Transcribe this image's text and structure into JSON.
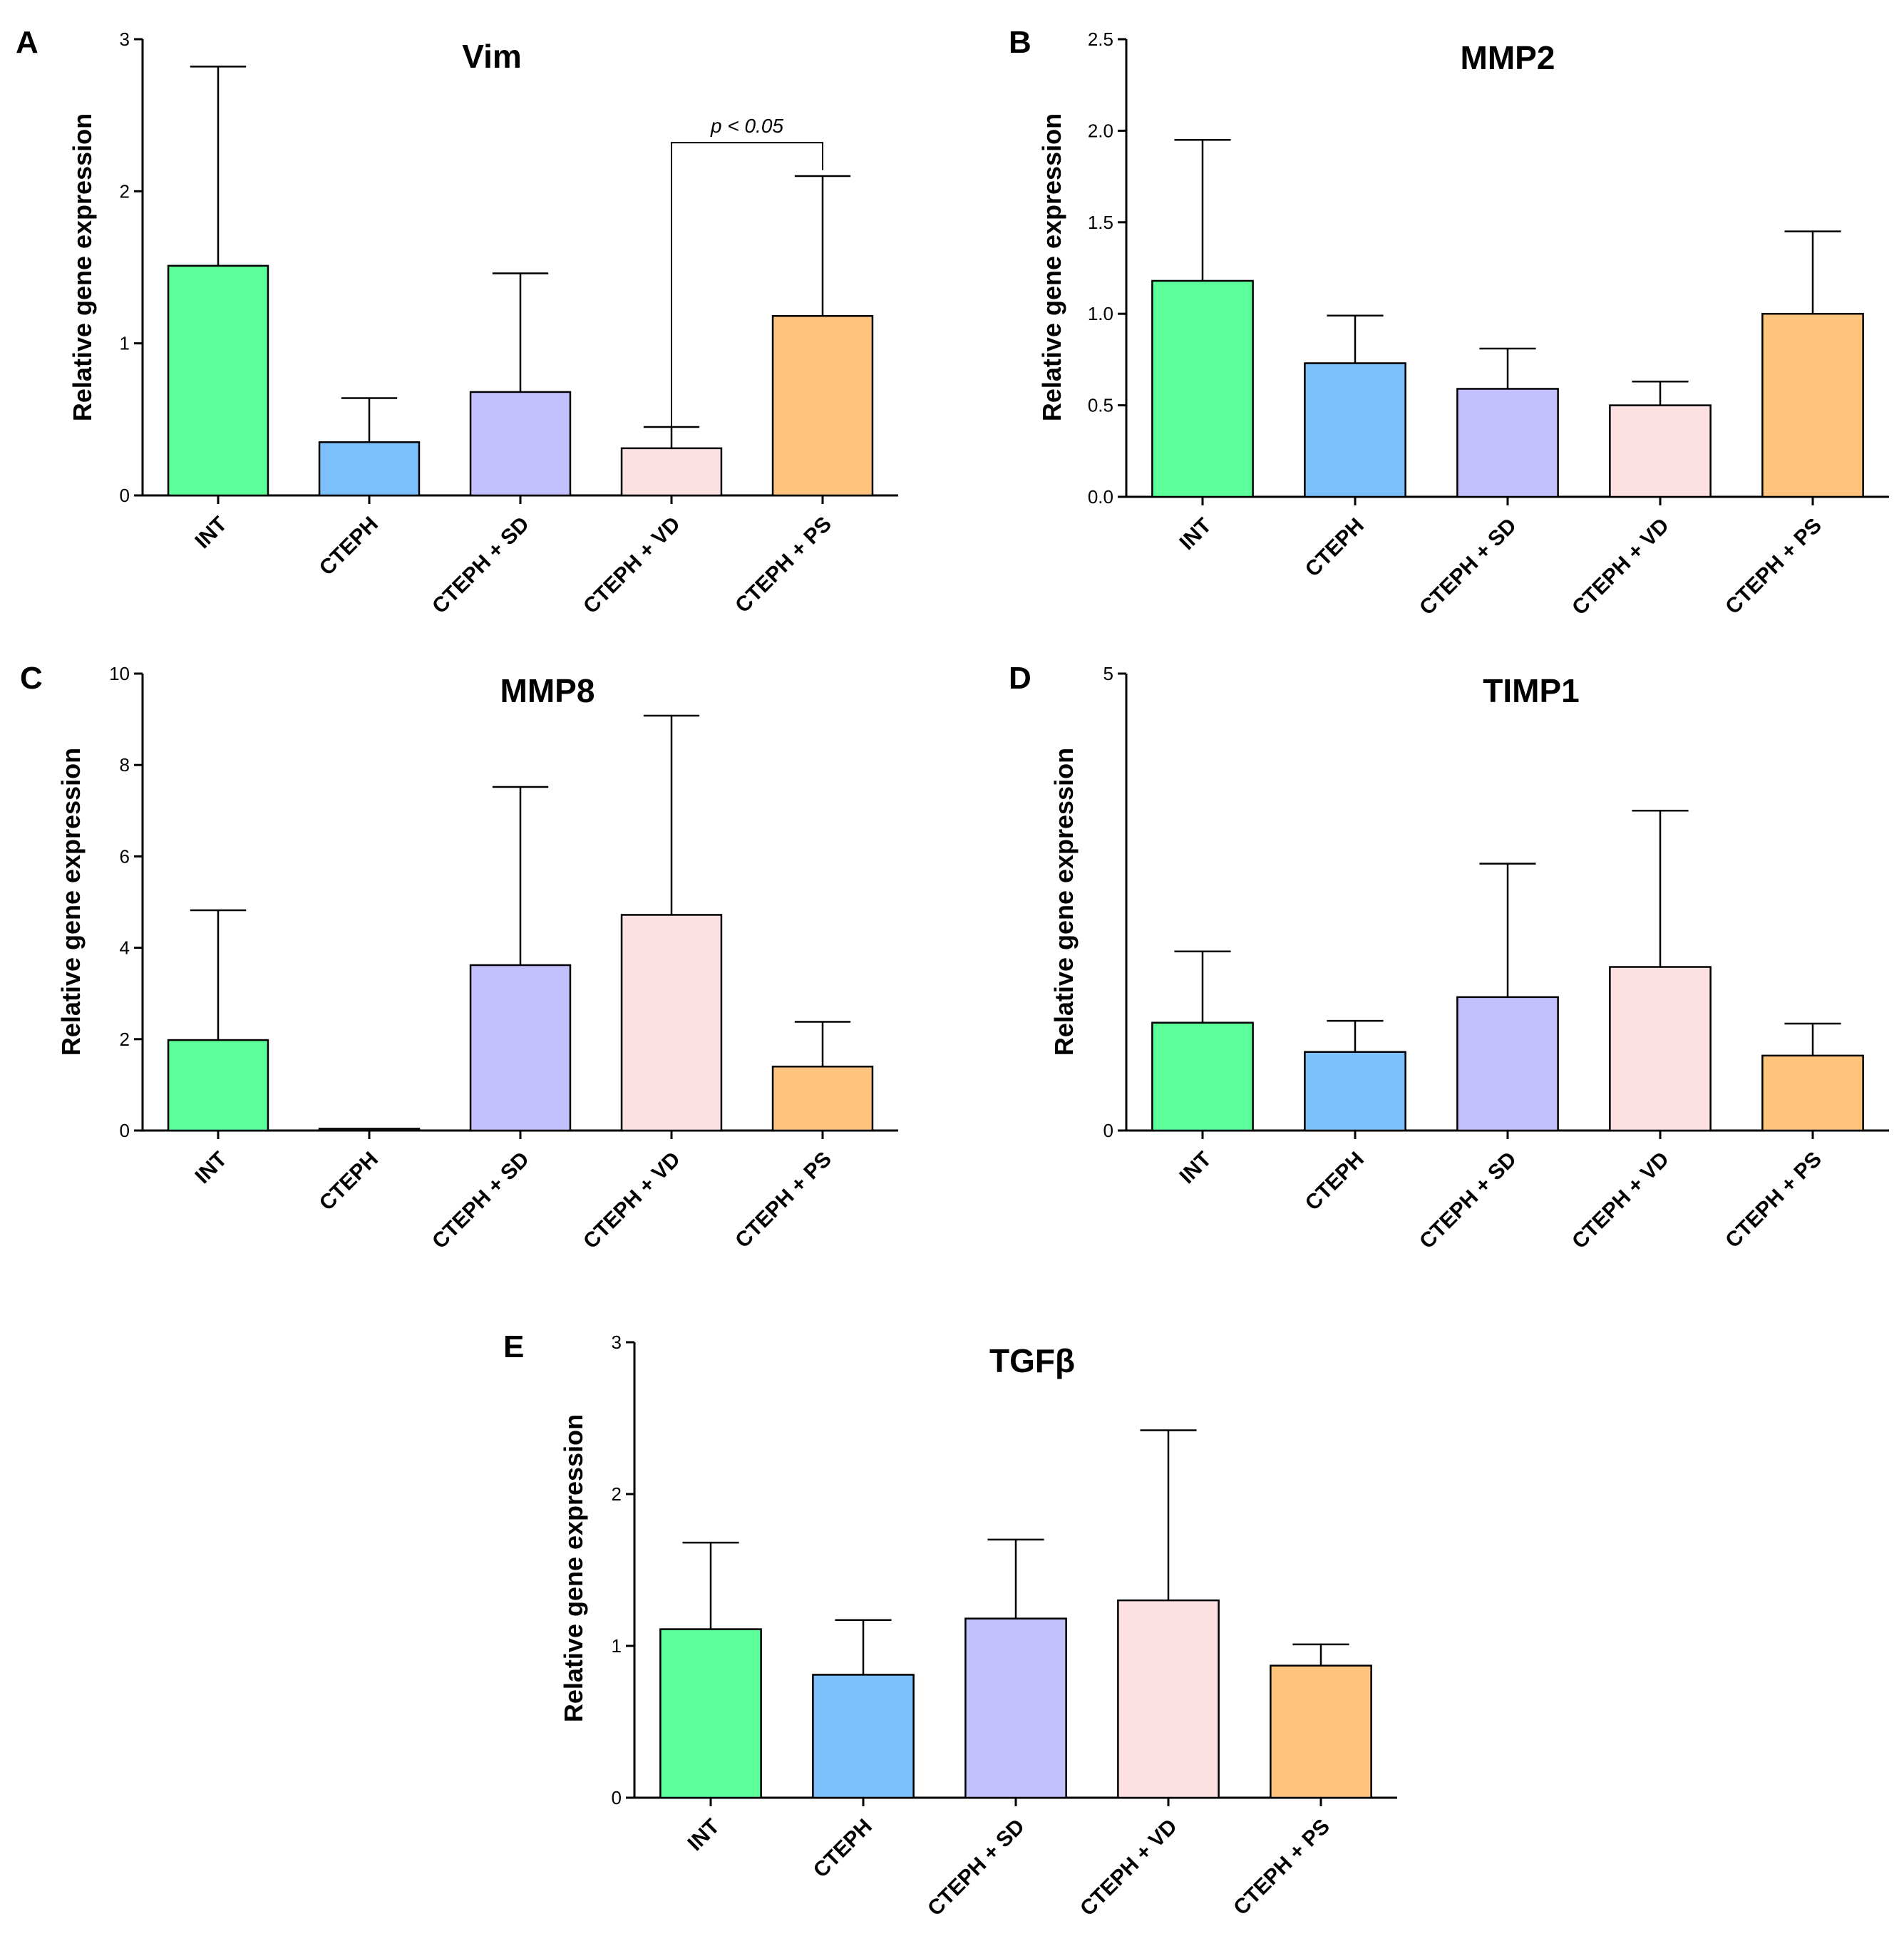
{
  "figure": {
    "categories": [
      "INT",
      "CTEPH",
      "CTEPH + SD",
      "CTEPH + VD",
      "CTEPH + PS"
    ],
    "colors": [
      "#5cff9a",
      "#7cc0fb",
      "#c2c0fd",
      "#fde0e2",
      "#fec37d"
    ]
  },
  "chart_data": [
    {
      "panel": "A",
      "type": "bar",
      "title": "Vim",
      "xlabel": "",
      "ylabel": "Relative gene expression",
      "ylim": [
        0,
        3
      ],
      "yticks": [
        0,
        1,
        2,
        3
      ],
      "tick_labels": [
        "0",
        "1",
        "2",
        "3"
      ],
      "categories": [
        "INT",
        "CTEPH",
        "CTEPH + SD",
        "CTEPH + VD",
        "CTEPH + PS"
      ],
      "values": [
        1.51,
        0.35,
        0.68,
        0.31,
        1.18
      ],
      "error_upper": [
        2.82,
        0.64,
        1.46,
        0.45,
        2.1
      ],
      "significance": {
        "from": 3,
        "to": 4,
        "label": "p < 0.05"
      }
    },
    {
      "panel": "B",
      "type": "bar",
      "title": "MMP2",
      "xlabel": "",
      "ylabel": "Relative gene expression",
      "ylim": [
        0,
        2.5
      ],
      "yticks": [
        0,
        0.5,
        1,
        1.5,
        2,
        2.5
      ],
      "tick_labels": [
        "0.0",
        "0.5",
        "1.0",
        "1.5",
        "2.0",
        "2.5"
      ],
      "categories": [
        "INT",
        "CTEPH",
        "CTEPH + SD",
        "CTEPH + VD",
        "CTEPH + PS"
      ],
      "values": [
        1.18,
        0.73,
        0.59,
        0.5,
        1.0
      ],
      "error_upper": [
        1.95,
        0.99,
        0.81,
        0.63,
        1.45
      ]
    },
    {
      "panel": "C",
      "type": "bar",
      "title": "MMP8",
      "xlabel": "",
      "ylabel": "Relative gene expression",
      "ylim": [
        0,
        10
      ],
      "yticks": [
        0,
        2,
        4,
        6,
        8,
        10
      ],
      "tick_labels": [
        "0",
        "2",
        "4",
        "6",
        "8",
        "10"
      ],
      "categories": [
        "INT",
        "CTEPH",
        "CTEPH + SD",
        "CTEPH + VD",
        "CTEPH + PS"
      ],
      "values": [
        1.98,
        0.04,
        3.62,
        4.72,
        1.4
      ],
      "error_upper": [
        4.82,
        0.04,
        7.52,
        9.08,
        2.38
      ]
    },
    {
      "panel": "D",
      "type": "bar",
      "title": "TIMP1",
      "xlabel": "",
      "ylabel": "Relative gene expression",
      "ylim": [
        0,
        5
      ],
      "yticks": [
        0,
        5
      ],
      "tick_labels": [
        "0",
        "5"
      ],
      "categories": [
        "INT",
        "CTEPH",
        "CTEPH + SD",
        "CTEPH + VD",
        "CTEPH + PS"
      ],
      "values": [
        1.18,
        0.86,
        1.46,
        1.79,
        0.82
      ],
      "error_upper": [
        1.96,
        1.2,
        2.92,
        3.5,
        1.17
      ]
    },
    {
      "panel": "E",
      "type": "bar",
      "title": "TGFβ",
      "xlabel": "",
      "ylabel": "Relative gene expression",
      "ylim": [
        0,
        3
      ],
      "yticks": [
        0,
        1,
        2,
        3
      ],
      "tick_labels": [
        "0",
        "1",
        "2",
        "3"
      ],
      "categories": [
        "INT",
        "CTEPH",
        "CTEPH + SD",
        "CTEPH + VD",
        "CTEPH + PS"
      ],
      "values": [
        1.11,
        0.81,
        1.18,
        1.3,
        0.87
      ],
      "error_upper": [
        1.68,
        1.17,
        1.7,
        2.42,
        1.01
      ]
    }
  ]
}
